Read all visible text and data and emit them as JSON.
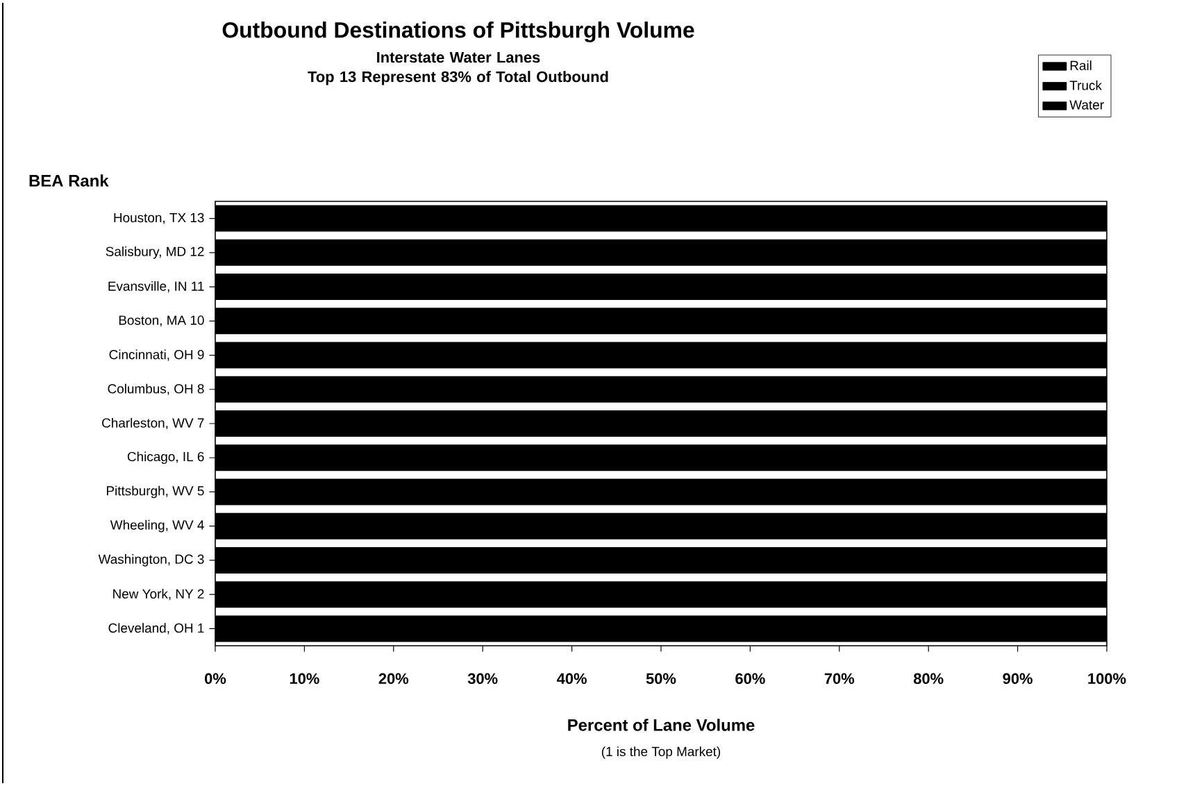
{
  "chart_data": {
    "type": "bar",
    "orientation": "horizontal",
    "title": "Outbound Destinations of Pittsburgh Volume",
    "subtitle": "Interstate Water Lanes\nTop 13 Represent 83% of Total Outbound",
    "ylabel": "BEA   Rank",
    "xlabel": "Percent of Lane Volume",
    "annotations": [
      "(1 is the Top Market)"
    ],
    "categories": [
      "Houston, TX 13",
      "Salisbury, MD 12",
      "Evansville, IN 11",
      "Boston, MA 10",
      "Cincinnati, OH  9",
      "Columbus, OH  8",
      "Charleston, WV  7",
      "Chicago, IL  6",
      "Pittsburgh, WV  5",
      "Wheeling, WV  4",
      "Washington, DC  3",
      "New York, NY  2",
      "Cleveland, OH  1"
    ],
    "series": [
      {
        "name": "Rail",
        "color": "#000000",
        "values": [
          null,
          null,
          null,
          null,
          null,
          null,
          null,
          null,
          null,
          null,
          null,
          null,
          null
        ]
      },
      {
        "name": "Truck",
        "color": "#000000",
        "values": [
          null,
          null,
          null,
          null,
          null,
          null,
          null,
          null,
          null,
          null,
          null,
          null,
          null
        ]
      },
      {
        "name": "Water",
        "color": "#000000",
        "values": [
          100,
          100,
          100,
          100,
          100,
          100,
          100,
          100,
          100,
          100,
          100,
          100,
          100
        ]
      }
    ],
    "xlim": [
      0,
      100
    ],
    "xticks": [
      {
        "value": 0,
        "label": "0%"
      },
      {
        "value": 10,
        "label": "10%"
      },
      {
        "value": 20,
        "label": "20%"
      },
      {
        "value": 30,
        "label": "30%"
      },
      {
        "value": 40,
        "label": "40%"
      },
      {
        "value": 50,
        "label": "50%"
      },
      {
        "value": 60,
        "label": "60%"
      },
      {
        "value": 70,
        "label": "70%"
      },
      {
        "value": 80,
        "label": "80%"
      },
      {
        "value": 90,
        "label": "90%"
      },
      {
        "value": 100,
        "label": "100%"
      }
    ],
    "legend": "top right"
  }
}
